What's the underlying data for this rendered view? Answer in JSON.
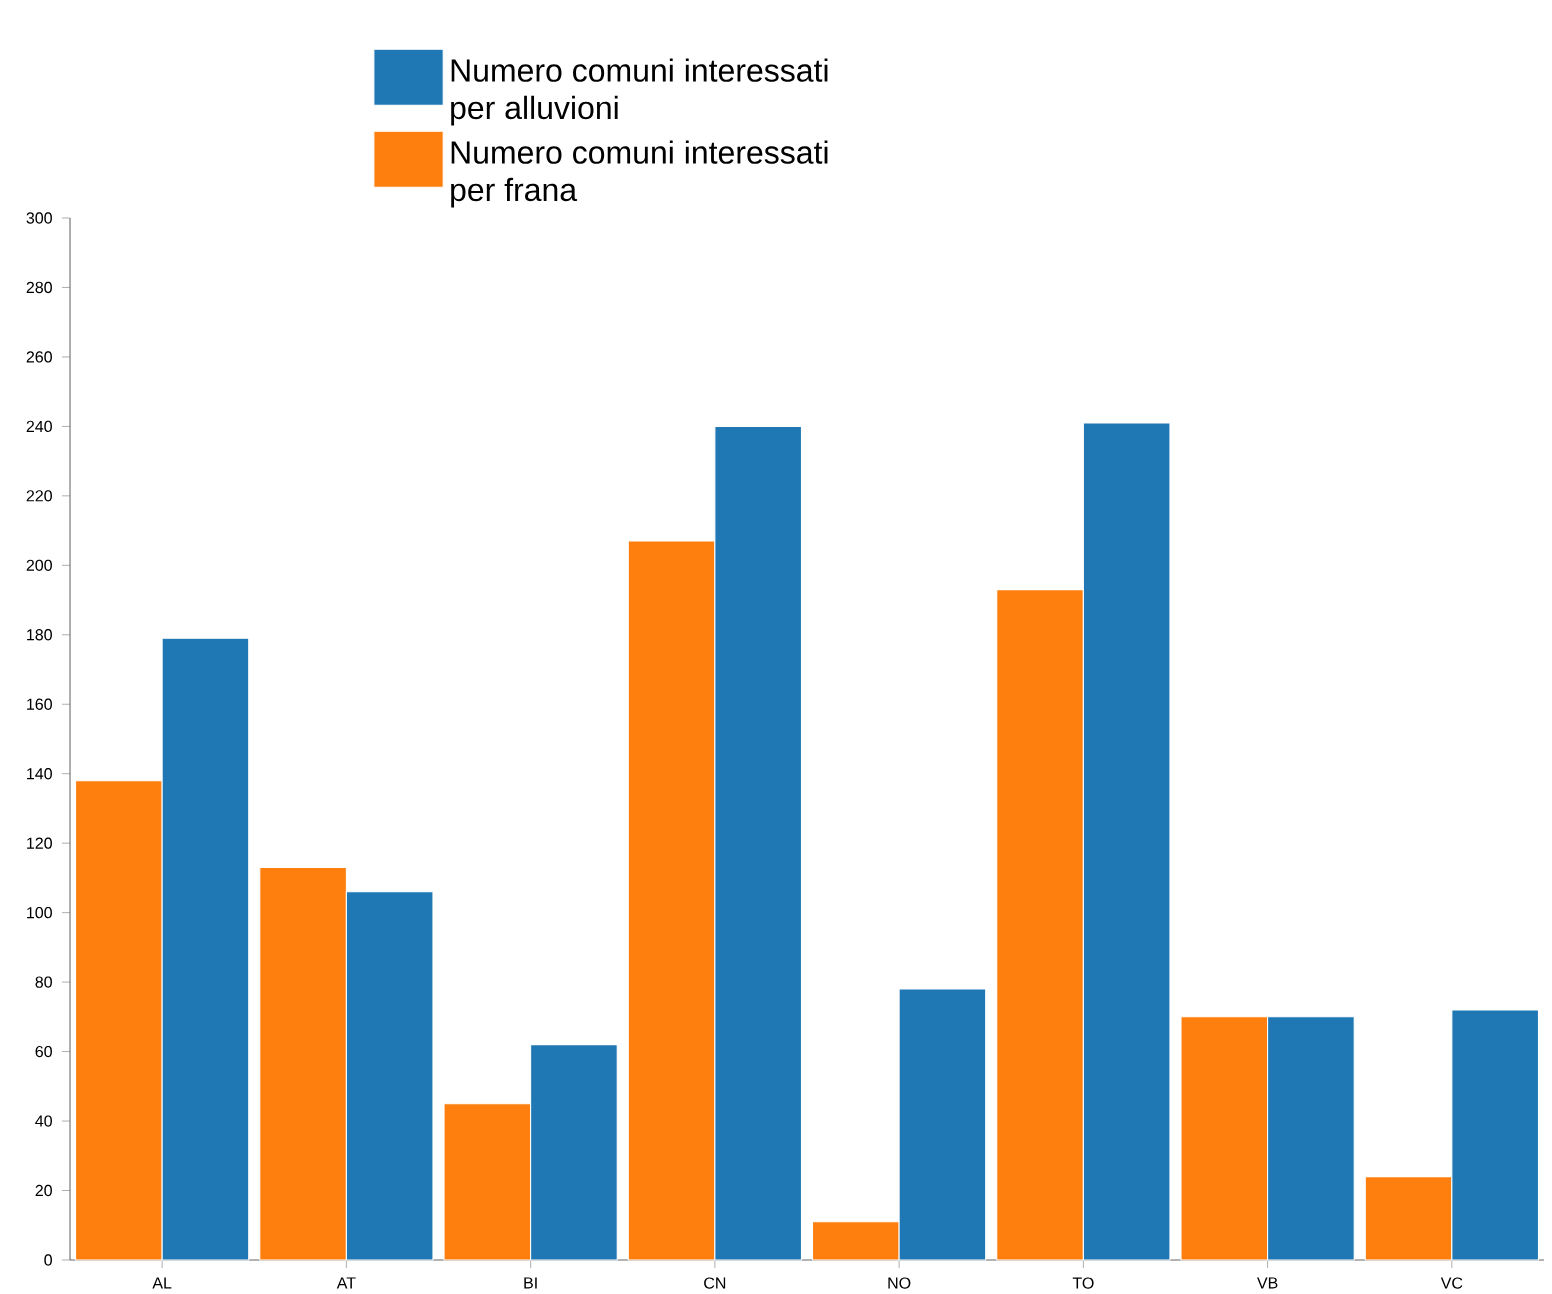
{
  "chart_data": {
    "type": "bar",
    "categories": [
      "AL",
      "AT",
      "BI",
      "CN",
      "NO",
      "TO",
      "VB",
      "VC"
    ],
    "series": [
      {
        "name": "Numero comuni interessati per frana",
        "color": "#ff7f0e",
        "values": [
          138,
          113,
          45,
          207,
          11,
          193,
          70,
          24
        ]
      },
      {
        "name": "Numero comuni interessati per alluvioni",
        "color": "#1f77b4",
        "values": [
          179,
          106,
          62,
          240,
          78,
          241,
          70,
          72
        ]
      }
    ],
    "ylim": [
      0,
      300
    ],
    "yticks": [
      0,
      20,
      40,
      60,
      80,
      100,
      120,
      140,
      160,
      180,
      200,
      220,
      240,
      260,
      280,
      300
    ],
    "grid": false,
    "legend": "top"
  }
}
